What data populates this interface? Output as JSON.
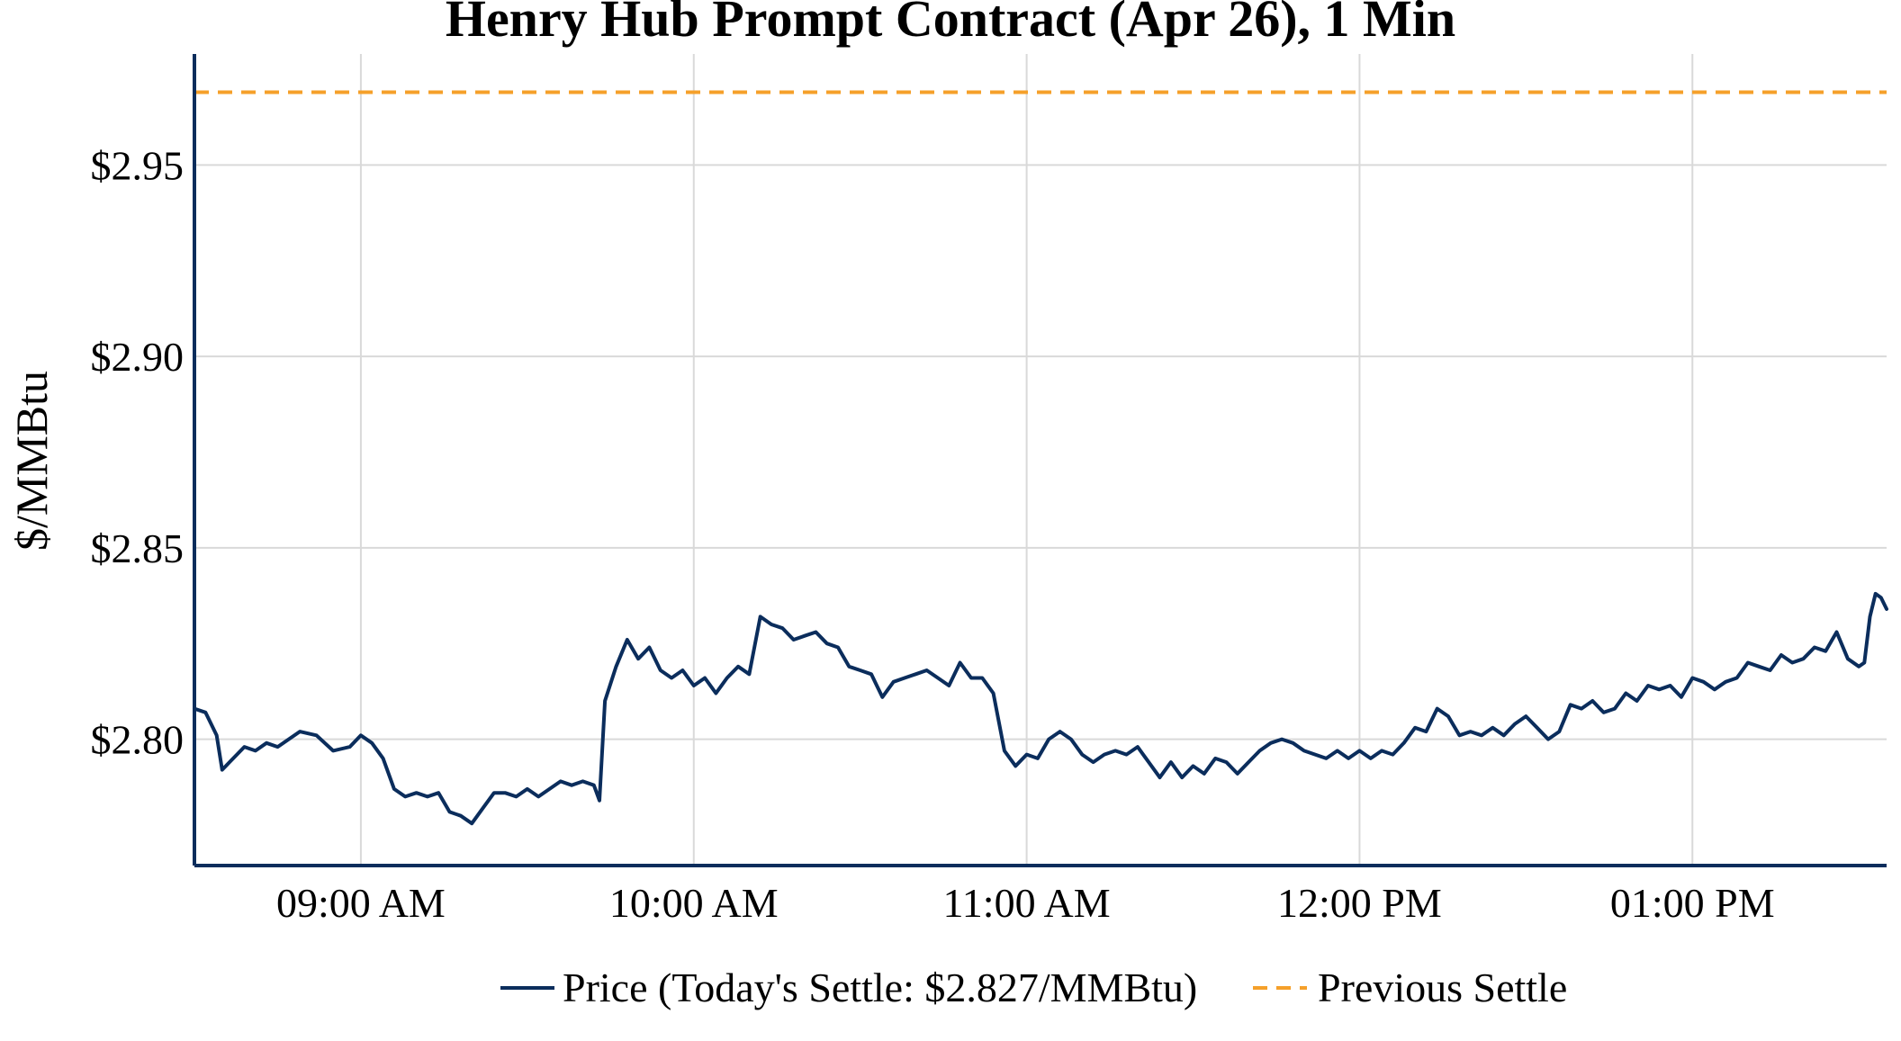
{
  "chart_data": {
    "type": "line",
    "title": "Henry Hub Prompt Contract (Apr 26), 1 Min",
    "ylabel": "$/MMBtu",
    "xlabel": "",
    "x_range": [
      "08:30",
      "13:35"
    ],
    "ylim": [
      2.767,
      2.979
    ],
    "y_ticks": [
      {
        "value": 2.8,
        "label": "$2.80"
      },
      {
        "value": 2.85,
        "label": "$2.85"
      },
      {
        "value": 2.9,
        "label": "$2.90"
      },
      {
        "value": 2.95,
        "label": "$2.95"
      }
    ],
    "x_ticks": [
      {
        "value": "09:00",
        "label": "09:00 AM"
      },
      {
        "value": "10:00",
        "label": "10:00 AM"
      },
      {
        "value": "11:00",
        "label": "11:00 AM"
      },
      {
        "value": "12:00",
        "label": "12:00 PM"
      },
      {
        "value": "13:00",
        "label": "01:00 PM"
      }
    ],
    "grid": true,
    "legend_position": "bottom",
    "series": [
      {
        "name": "Price (Today's Settle: $2.827/MMBtu)",
        "color": "#0b2d5c",
        "style": "solid",
        "points": [
          [
            "08:30",
            2.808
          ],
          [
            "08:32",
            2.807
          ],
          [
            "08:34",
            2.801
          ],
          [
            "08:35",
            2.792
          ],
          [
            "08:37",
            2.795
          ],
          [
            "08:39",
            2.798
          ],
          [
            "08:41",
            2.797
          ],
          [
            "08:43",
            2.799
          ],
          [
            "08:45",
            2.798
          ],
          [
            "08:47",
            2.8
          ],
          [
            "08:49",
            2.802
          ],
          [
            "08:52",
            2.801
          ],
          [
            "08:55",
            2.797
          ],
          [
            "08:58",
            2.798
          ],
          [
            "09:00",
            2.801
          ],
          [
            "09:02",
            2.799
          ],
          [
            "09:04",
            2.795
          ],
          [
            "09:06",
            2.787
          ],
          [
            "09:08",
            2.785
          ],
          [
            "09:10",
            2.786
          ],
          [
            "09:12",
            2.785
          ],
          [
            "09:14",
            2.786
          ],
          [
            "09:16",
            2.781
          ],
          [
            "09:18",
            2.78
          ],
          [
            "09:20",
            2.778
          ],
          [
            "09:22",
            2.782
          ],
          [
            "09:24",
            2.786
          ],
          [
            "09:26",
            2.786
          ],
          [
            "09:28",
            2.785
          ],
          [
            "09:30",
            2.787
          ],
          [
            "09:32",
            2.785
          ],
          [
            "09:34",
            2.787
          ],
          [
            "09:36",
            2.789
          ],
          [
            "09:38",
            2.788
          ],
          [
            "09:40",
            2.789
          ],
          [
            "09:42",
            2.788
          ],
          [
            "09:43",
            2.784
          ],
          [
            "09:44",
            2.81
          ],
          [
            "09:46",
            2.819
          ],
          [
            "09:48",
            2.826
          ],
          [
            "09:50",
            2.821
          ],
          [
            "09:52",
            2.824
          ],
          [
            "09:54",
            2.818
          ],
          [
            "09:56",
            2.816
          ],
          [
            "09:58",
            2.818
          ],
          [
            "10:00",
            2.814
          ],
          [
            "10:02",
            2.816
          ],
          [
            "10:04",
            2.812
          ],
          [
            "10:06",
            2.816
          ],
          [
            "10:08",
            2.819
          ],
          [
            "10:10",
            2.817
          ],
          [
            "10:12",
            2.832
          ],
          [
            "10:14",
            2.83
          ],
          [
            "10:16",
            2.829
          ],
          [
            "10:18",
            2.826
          ],
          [
            "10:20",
            2.827
          ],
          [
            "10:22",
            2.828
          ],
          [
            "10:24",
            2.825
          ],
          [
            "10:26",
            2.824
          ],
          [
            "10:28",
            2.819
          ],
          [
            "10:30",
            2.818
          ],
          [
            "10:32",
            2.817
          ],
          [
            "10:34",
            2.811
          ],
          [
            "10:36",
            2.815
          ],
          [
            "10:38",
            2.816
          ],
          [
            "10:40",
            2.817
          ],
          [
            "10:42",
            2.818
          ],
          [
            "10:44",
            2.816
          ],
          [
            "10:46",
            2.814
          ],
          [
            "10:48",
            2.82
          ],
          [
            "10:50",
            2.816
          ],
          [
            "10:52",
            2.816
          ],
          [
            "10:54",
            2.812
          ],
          [
            "10:56",
            2.797
          ],
          [
            "10:58",
            2.793
          ],
          [
            "11:00",
            2.796
          ],
          [
            "11:02",
            2.795
          ],
          [
            "11:04",
            2.8
          ],
          [
            "11:06",
            2.802
          ],
          [
            "11:08",
            2.8
          ],
          [
            "11:10",
            2.796
          ],
          [
            "11:12",
            2.794
          ],
          [
            "11:14",
            2.796
          ],
          [
            "11:16",
            2.797
          ],
          [
            "11:18",
            2.796
          ],
          [
            "11:20",
            2.798
          ],
          [
            "11:22",
            2.794
          ],
          [
            "11:24",
            2.79
          ],
          [
            "11:26",
            2.794
          ],
          [
            "11:28",
            2.79
          ],
          [
            "11:30",
            2.793
          ],
          [
            "11:32",
            2.791
          ],
          [
            "11:34",
            2.795
          ],
          [
            "11:36",
            2.794
          ],
          [
            "11:38",
            2.791
          ],
          [
            "11:40",
            2.794
          ],
          [
            "11:42",
            2.797
          ],
          [
            "11:44",
            2.799
          ],
          [
            "11:46",
            2.8
          ],
          [
            "11:48",
            2.799
          ],
          [
            "11:50",
            2.797
          ],
          [
            "11:52",
            2.796
          ],
          [
            "11:54",
            2.795
          ],
          [
            "11:56",
            2.797
          ],
          [
            "11:58",
            2.795
          ],
          [
            "12:00",
            2.797
          ],
          [
            "12:02",
            2.795
          ],
          [
            "12:04",
            2.797
          ],
          [
            "12:06",
            2.796
          ],
          [
            "12:08",
            2.799
          ],
          [
            "12:10",
            2.803
          ],
          [
            "12:12",
            2.802
          ],
          [
            "12:14",
            2.808
          ],
          [
            "12:16",
            2.806
          ],
          [
            "12:18",
            2.801
          ],
          [
            "12:20",
            2.802
          ],
          [
            "12:22",
            2.801
          ],
          [
            "12:24",
            2.803
          ],
          [
            "12:26",
            2.801
          ],
          [
            "12:28",
            2.804
          ],
          [
            "12:30",
            2.806
          ],
          [
            "12:32",
            2.803
          ],
          [
            "12:34",
            2.8
          ],
          [
            "12:36",
            2.802
          ],
          [
            "12:38",
            2.809
          ],
          [
            "12:40",
            2.808
          ],
          [
            "12:42",
            2.81
          ],
          [
            "12:44",
            2.807
          ],
          [
            "12:46",
            2.808
          ],
          [
            "12:48",
            2.812
          ],
          [
            "12:50",
            2.81
          ],
          [
            "12:52",
            2.814
          ],
          [
            "12:54",
            2.813
          ],
          [
            "12:56",
            2.814
          ],
          [
            "12:58",
            2.811
          ],
          [
            "13:00",
            2.816
          ],
          [
            "13:02",
            2.815
          ],
          [
            "13:04",
            2.813
          ],
          [
            "13:06",
            2.815
          ],
          [
            "13:08",
            2.816
          ],
          [
            "13:10",
            2.82
          ],
          [
            "13:12",
            2.819
          ],
          [
            "13:14",
            2.818
          ],
          [
            "13:16",
            2.822
          ],
          [
            "13:18",
            2.82
          ],
          [
            "13:20",
            2.821
          ],
          [
            "13:22",
            2.824
          ],
          [
            "13:24",
            2.823
          ],
          [
            "13:26",
            2.828
          ],
          [
            "13:28",
            2.821
          ],
          [
            "13:30",
            2.819
          ],
          [
            "13:31",
            2.82
          ],
          [
            "13:32",
            2.832
          ],
          [
            "13:33",
            2.838
          ],
          [
            "13:34",
            2.837
          ],
          [
            "13:35",
            2.834
          ]
        ]
      },
      {
        "name": "Previous Settle",
        "color": "#f5a02a",
        "style": "dashed",
        "value": 2.969
      }
    ]
  }
}
